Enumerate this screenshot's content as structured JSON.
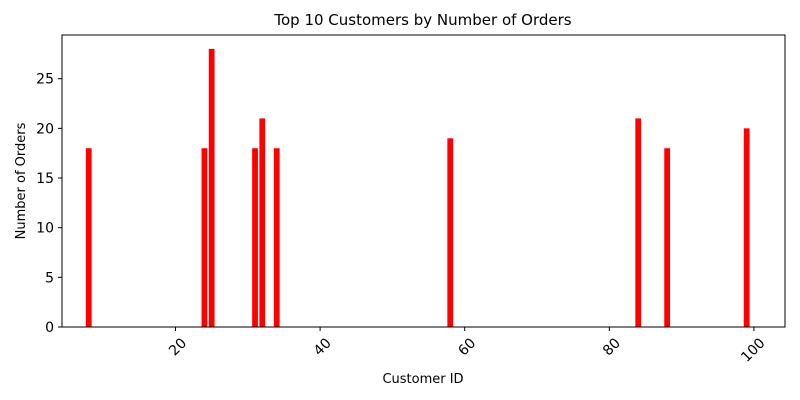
{
  "chart_data": {
    "type": "bar",
    "title": "Top 10 Customers by Number of Orders",
    "xlabel": "Customer ID",
    "ylabel": "Number of Orders",
    "x": [
      8,
      24,
      25,
      31,
      32,
      34,
      58,
      84,
      88,
      99
    ],
    "values": [
      18,
      18,
      28,
      18,
      21,
      18,
      19,
      21,
      18,
      20
    ],
    "xlim": [
      4.3,
      104.3
    ],
    "ylim": [
      0,
      29.4
    ],
    "xticks": [
      20,
      40,
      60,
      80,
      100
    ],
    "yticks": [
      0,
      5,
      10,
      15,
      20,
      25
    ],
    "xtick_rotation": 45,
    "bar_color": "#ff0000",
    "grid": false,
    "legend": "none"
  }
}
